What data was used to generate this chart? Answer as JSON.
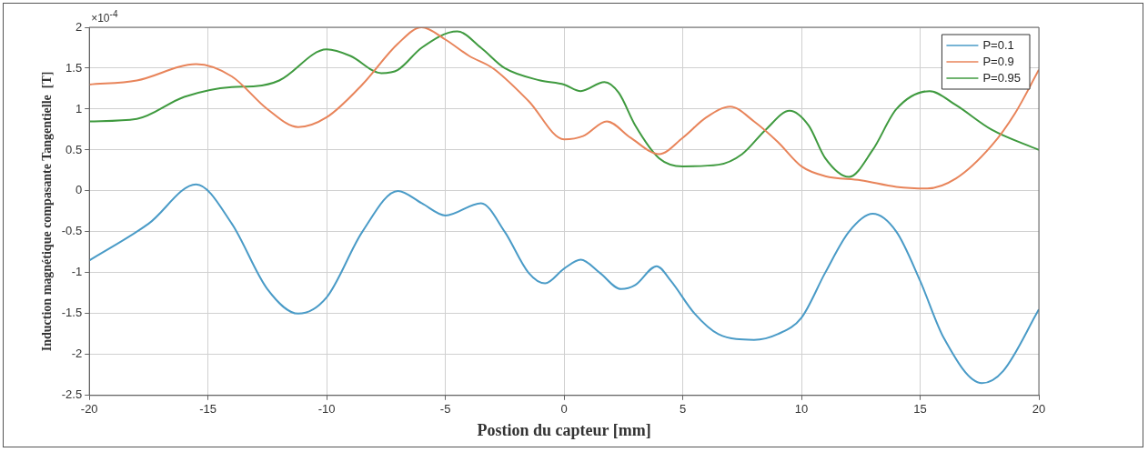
{
  "chart_data": {
    "type": "line",
    "xlabel": "Postion du capteur [mm]",
    "ylabel": "Induction magnétique compasante Tangentielle  [T]",
    "annotations": [
      "×10$^{-4}$"
    ],
    "xlim": [
      -20,
      20
    ],
    "xticks": [
      -20,
      -15,
      -10,
      -5,
      0,
      5,
      10,
      15,
      20
    ],
    "ylim": [
      -2.5,
      2
    ],
    "yticks": [
      -2.5,
      -2,
      -1.5,
      -1,
      -0.5,
      0,
      0.5,
      1,
      1.5,
      2
    ],
    "grid": true,
    "legend": "top right",
    "marker": "none",
    "line_style": "solid",
    "series": [
      {
        "name": "P=0.1",
        "color": "#4a9bc7",
        "x": [
          -20,
          -17.5,
          -15.5,
          -14,
          -12.5,
          -11.2,
          -10,
          -8.5,
          -7,
          -6,
          -5,
          -3.5,
          -2.5,
          -1.5,
          -0.8,
          0,
          0.7,
          1.5,
          2.4,
          3,
          3.9,
          4.5,
          5.5,
          6.5,
          8,
          9,
          10,
          11,
          12,
          13,
          14,
          15,
          16,
          17.6,
          18.5,
          20
        ],
        "values": [
          -0.85,
          -0.4,
          0.08,
          -0.4,
          -1.2,
          -1.5,
          -1.3,
          -0.5,
          0,
          -0.15,
          -0.3,
          -0.15,
          -0.5,
          -1,
          -1.13,
          -0.95,
          -0.84,
          -1,
          -1.2,
          -1.15,
          -0.92,
          -1.1,
          -1.5,
          -1.75,
          -1.82,
          -1.75,
          -1.55,
          -1,
          -0.5,
          -0.28,
          -0.5,
          -1.1,
          -1.8,
          -2.35,
          -2.2,
          -1.45
        ]
      },
      {
        "name": "P=0.9",
        "color": "#e8845a",
        "x": [
          -20,
          -18,
          -15.5,
          -14,
          -12.5,
          -11.2,
          -10,
          -8.5,
          -7,
          -6,
          -5,
          -4,
          -3,
          -1.5,
          0,
          0.8,
          1.8,
          2.8,
          4,
          5,
          6,
          7,
          8,
          9,
          10,
          11,
          12.5,
          14,
          15.3,
          16.5,
          18,
          19,
          20
        ],
        "values": [
          1.3,
          1.35,
          1.55,
          1.4,
          1,
          0.78,
          0.9,
          1.3,
          1.8,
          2,
          1.85,
          1.65,
          1.5,
          1.1,
          0.63,
          0.67,
          0.85,
          0.65,
          0.45,
          0.65,
          0.9,
          1.03,
          0.85,
          0.6,
          0.3,
          0.18,
          0.13,
          0.05,
          0.03,
          0.15,
          0.55,
          0.95,
          1.48
        ]
      },
      {
        "name": "P=0.95",
        "color": "#3f9a3f",
        "x": [
          -20,
          -18,
          -16,
          -14,
          -13,
          -12,
          -10,
          -9,
          -7.7,
          -7,
          -6,
          -4.5,
          -3.5,
          -2.5,
          -1,
          0,
          0.7,
          1.7,
          2.3,
          3,
          4,
          5,
          6.5,
          7.5,
          8.5,
          9.5,
          10.3,
          11,
          12,
          13,
          14,
          15.4,
          16.5,
          18,
          20
        ],
        "values": [
          0.85,
          0.88,
          1.15,
          1.27,
          1.28,
          1.35,
          1.73,
          1.65,
          1.44,
          1.48,
          1.75,
          1.95,
          1.75,
          1.5,
          1.35,
          1.3,
          1.22,
          1.33,
          1.2,
          0.8,
          0.4,
          0.3,
          0.32,
          0.45,
          0.75,
          0.98,
          0.8,
          0.4,
          0.17,
          0.5,
          1,
          1.22,
          1.05,
          0.75,
          0.5
        ]
      }
    ]
  }
}
